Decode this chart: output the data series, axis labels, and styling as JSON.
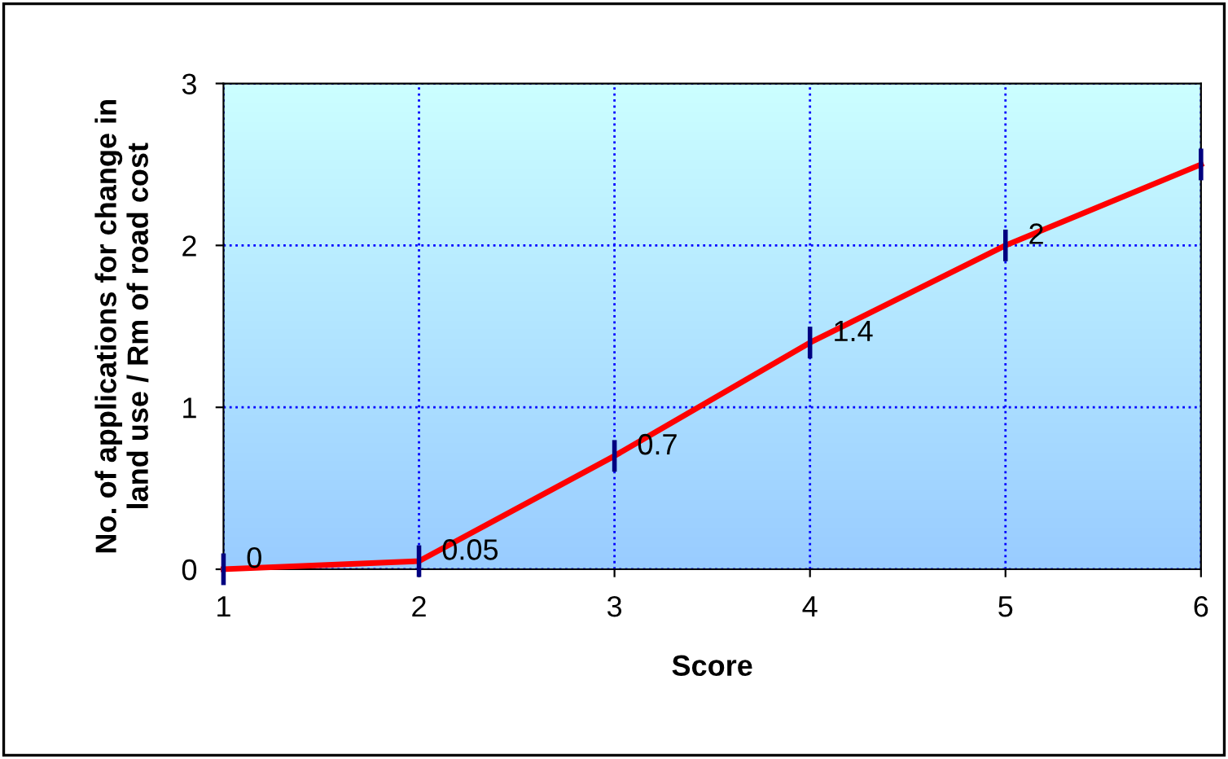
{
  "chart_data": {
    "type": "line",
    "xlabel": "Score",
    "ylabel": "No. of applications for change in\nland use / Rm of road cost",
    "x": [
      1,
      2,
      3,
      4,
      5,
      6
    ],
    "series": [
      {
        "color": "#ff0000",
        "values": [
          0,
          0.05,
          0.7,
          1.4,
          2,
          2.5
        ],
        "value_labels": [
          "0",
          "0.05",
          "0.7",
          "1.4",
          "2",
          null
        ]
      }
    ],
    "xlim": [
      1,
      6
    ],
    "xticks": [
      1,
      2,
      3,
      4,
      5,
      6
    ],
    "ylim": [
      0,
      3
    ],
    "yticks": [
      0,
      1,
      2,
      3
    ],
    "grid": true,
    "line_style": "solid",
    "legend": false
  }
}
